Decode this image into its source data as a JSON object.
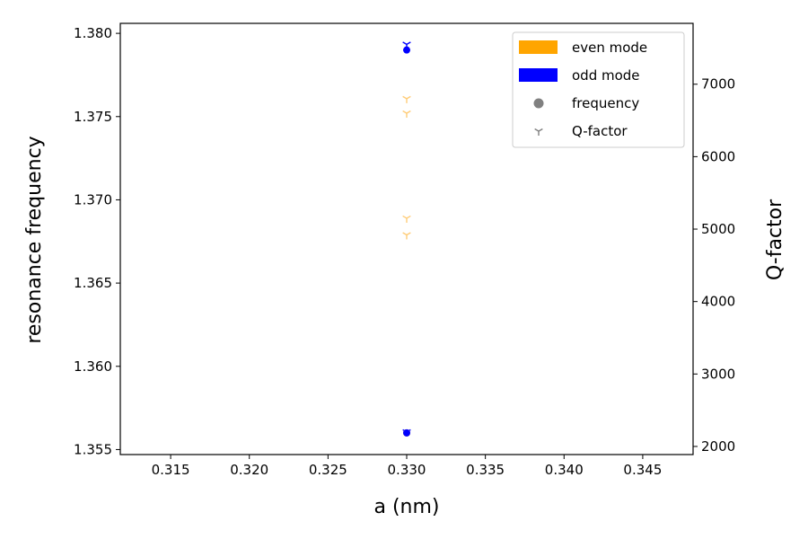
{
  "chart_data": {
    "type": "scatter",
    "xlabel": "a (nm)",
    "ylabel": "resonance frequency",
    "y2label": "Q-factor",
    "xlim": [
      0.3118,
      0.3482
    ],
    "ylim": [
      1.3547,
      1.3806
    ],
    "y2lim": [
      1888,
      7840
    ],
    "x_ticks": [
      "0.315",
      "0.320",
      "0.325",
      "0.330",
      "0.335",
      "0.340",
      "0.345"
    ],
    "y_ticks": [
      "1.355",
      "1.360",
      "1.365",
      "1.370",
      "1.375",
      "1.380"
    ],
    "y2_ticks": [
      "2000",
      "3000",
      "4000",
      "5000",
      "6000",
      "7000"
    ],
    "grid": false,
    "legend_position": "top-right",
    "legend": [
      {
        "label": "even mode",
        "marker": "patch",
        "color": "#ffa500"
      },
      {
        "label": "odd mode",
        "marker": "patch",
        "color": "#0000ff"
      },
      {
        "label": "frequency",
        "marker": "circle",
        "color": "#808080"
      },
      {
        "label": "Q-factor",
        "marker": "tri_down",
        "color": "#808080"
      }
    ],
    "series": [
      {
        "mode": "even",
        "kind": "frequency",
        "axis": "left",
        "color": "#ffa500",
        "points": [
          [
            0.33,
            1.356
          ]
        ]
      },
      {
        "mode": "odd",
        "kind": "frequency",
        "axis": "left",
        "color": "#0000ff",
        "points": [
          [
            0.33,
            1.379
          ],
          [
            0.33,
            1.356
          ]
        ]
      },
      {
        "mode": "even",
        "kind": "Q-factor",
        "axis": "right",
        "color": "#ffcc77",
        "points": [
          [
            0.33,
            6800
          ],
          [
            0.33,
            6600
          ],
          [
            0.33,
            5150
          ],
          [
            0.33,
            4920
          ]
        ]
      },
      {
        "mode": "odd",
        "kind": "Q-factor",
        "axis": "right",
        "color": "#0000ff",
        "points": [
          [
            0.33,
            7550
          ],
          [
            0.33,
            2200
          ]
        ]
      }
    ]
  }
}
